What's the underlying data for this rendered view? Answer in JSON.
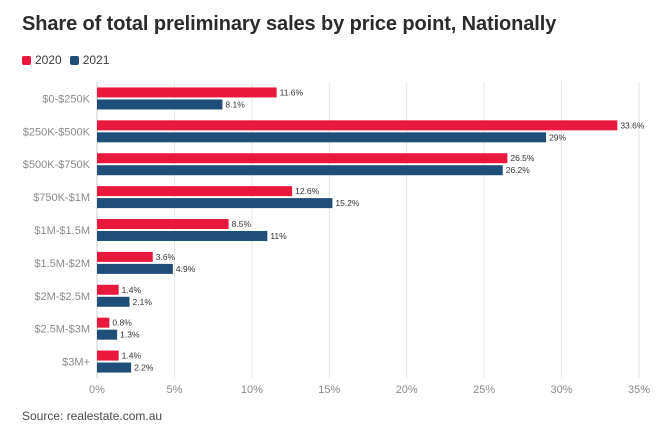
{
  "title": "Share of total preliminary sales by price point, Nationally",
  "source": "Source: realestate.com.au",
  "colors": {
    "series_2020": "#e8193c",
    "series_2021": "#1f4e79",
    "grid": "#e6e6e6",
    "axis": "#cfcfcf"
  },
  "chart_data": {
    "type": "bar",
    "orientation": "horizontal",
    "title": "Share of total preliminary sales by price point, Nationally",
    "categories": [
      "$0-$250K",
      "$250K-$500K",
      "$500K-$750K",
      "$750K-$1M",
      "$1M-$1.5M",
      "$1.5M-$2M",
      "$2M-$2.5M",
      "$2.5M-$3M",
      "$3M+"
    ],
    "series": [
      {
        "name": "2020",
        "values": [
          11.6,
          33.6,
          26.5,
          12.6,
          8.5,
          3.6,
          1.4,
          0.8,
          1.4
        ],
        "labels": [
          "11.6%",
          "33.6%",
          "26.5%",
          "12.6%",
          "8.5%",
          "3.6%",
          "1.4%",
          "0.8%",
          "1.4%"
        ]
      },
      {
        "name": "2021",
        "values": [
          8.1,
          29,
          26.2,
          15.2,
          11,
          4.9,
          2.1,
          1.3,
          2.2
        ],
        "labels": [
          "8.1%",
          "29%",
          "26.2%",
          "15.2%",
          "11%",
          "4.9%",
          "2.1%",
          "1.3%",
          "2.2%"
        ]
      }
    ],
    "xlim": [
      0,
      35
    ],
    "ticks": [
      0,
      5,
      10,
      15,
      20,
      25,
      30,
      35
    ],
    "tick_labels": [
      "0%",
      "5%",
      "10%",
      "15%",
      "20%",
      "25%",
      "30%",
      "35%"
    ],
    "xlabel": "",
    "ylabel": "",
    "grid": true,
    "legend_position": "top-left"
  }
}
